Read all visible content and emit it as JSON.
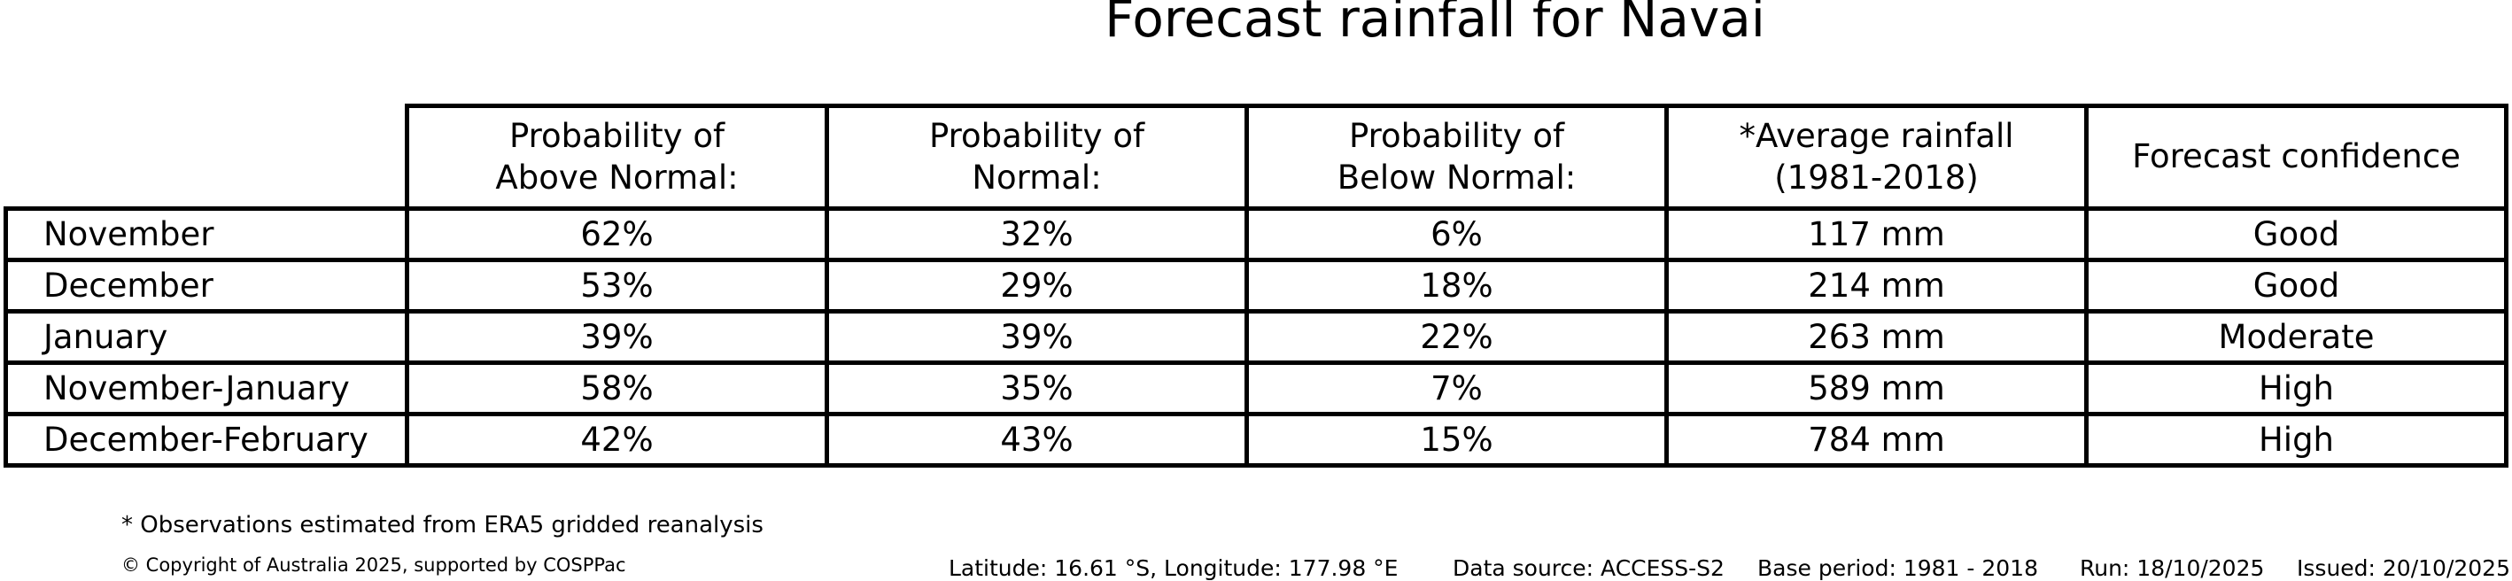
{
  "title": "Forecast rainfall for Navai",
  "table": {
    "headers": [
      "Probability of\nAbove Normal:",
      "Probability of\nNormal:",
      "Probability of\nBelow Normal:",
      "*Average rainfall\n(1981-2018)",
      "Forecast confidence"
    ],
    "rows": [
      {
        "label": "November",
        "above": "62%",
        "normal": "32%",
        "below": "6%",
        "rainfall": "117 mm",
        "confidence": "Good"
      },
      {
        "label": "December",
        "above": "53%",
        "normal": "29%",
        "below": "18%",
        "rainfall": "214 mm",
        "confidence": "Good"
      },
      {
        "label": "January",
        "above": "39%",
        "normal": "39%",
        "below": "22%",
        "rainfall": "263 mm",
        "confidence": "Moderate"
      },
      {
        "label": "November-January",
        "above": "58%",
        "normal": "35%",
        "below": "7%",
        "rainfall": "589 mm",
        "confidence": "High"
      },
      {
        "label": "December-February",
        "above": "42%",
        "normal": "43%",
        "below": "15%",
        "rainfall": "784 mm",
        "confidence": "High"
      }
    ]
  },
  "footnote": "* Observations estimated from ERA5 gridded reanalysis",
  "copyright": "© Copyright of Australia 2025, supported by COSPPac",
  "info": {
    "location": "Latitude: 16.61 °S, Longitude: 177.98 °E",
    "data_source": "Data source: ACCESS-S2",
    "base_period": "Base period: 1981 - 2018",
    "run": "Run: 18/10/2025",
    "issued": "Issued: 20/10/2025"
  },
  "colors": {
    "text": "#000000",
    "border": "#000000",
    "background": "#ffffff"
  },
  "chart_data": {
    "type": "table",
    "title": "Forecast rainfall for Navai",
    "columns": [
      "",
      "Probability of Above Normal:",
      "Probability of Normal:",
      "Probability of Below Normal:",
      "*Average rainfall (1981-2018)",
      "Forecast confidence"
    ],
    "rows": [
      [
        "November",
        "62%",
        "32%",
        "6%",
        "117 mm",
        "Good"
      ],
      [
        "December",
        "53%",
        "29%",
        "18%",
        "214 mm",
        "Good"
      ],
      [
        "January",
        "39%",
        "39%",
        "22%",
        "263 mm",
        "Moderate"
      ],
      [
        "November-January",
        "58%",
        "35%",
        "7%",
        "589 mm",
        "High"
      ],
      [
        "December-February",
        "42%",
        "43%",
        "15%",
        "784 mm",
        "High"
      ]
    ],
    "probability_above_normal_pct": [
      62,
      53,
      39,
      58,
      42
    ],
    "probability_normal_pct": [
      32,
      29,
      39,
      35,
      43
    ],
    "probability_below_normal_pct": [
      6,
      18,
      22,
      7,
      15
    ],
    "average_rainfall_mm": [
      117,
      214,
      263,
      589,
      784
    ],
    "forecast_confidence": [
      "Good",
      "Good",
      "Moderate",
      "High",
      "High"
    ],
    "periods": [
      "November",
      "December",
      "January",
      "November-January",
      "December-February"
    ]
  }
}
